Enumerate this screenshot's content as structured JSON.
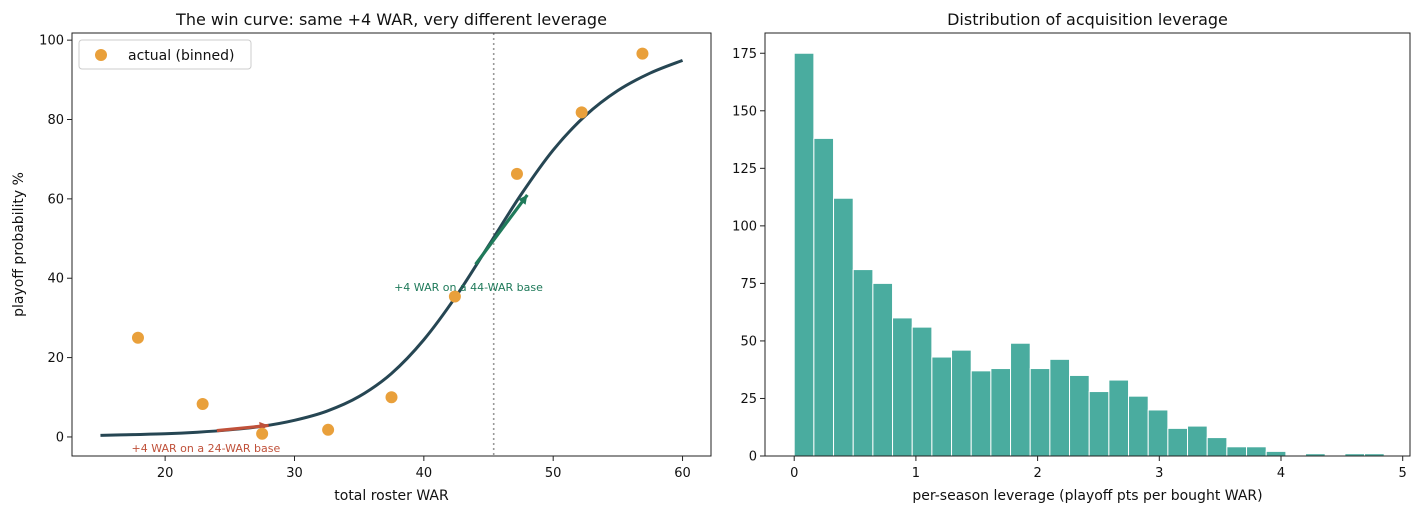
{
  "chart_data": [
    {
      "type": "line",
      "title": "The win curve: same +4 WAR, very different leverage",
      "xlabel": "total roster WAR",
      "ylabel": "playoff probability %",
      "xlim": [
        12.8,
        62.2
      ],
      "ylim": [
        -4.8,
        101.8
      ],
      "xticks": [
        20,
        30,
        40,
        50,
        60
      ],
      "yticks": [
        0,
        20,
        40,
        60,
        80,
        100
      ],
      "grid": false,
      "legend_position": "top-left",
      "curve": {
        "name": "",
        "color": "#264653",
        "x": [
          15,
          17.5,
          20,
          22.5,
          25,
          27.5,
          30,
          32.5,
          35,
          37.5,
          40,
          42.5,
          45,
          47.5,
          50,
          52.5,
          55,
          57.5,
          60
        ],
        "y": [
          0.4,
          0.6,
          0.8,
          1.2,
          1.8,
          2.7,
          4.2,
          6.5,
          10.2,
          16.0,
          24.5,
          35.5,
          48.2,
          61.0,
          72.3,
          81.0,
          87.3,
          91.7,
          94.9
        ]
      },
      "series": [
        {
          "name": "actual (binned)",
          "type": "scatter",
          "color": "#E9A03B",
          "x": [
            17.9,
            22.9,
            27.5,
            32.6,
            37.5,
            42.4,
            47.2,
            52.2,
            56.9
          ],
          "y": [
            25.0,
            8.3,
            0.8,
            1.8,
            10.0,
            35.4,
            66.3,
            81.8,
            96.6
          ]
        }
      ],
      "reference_line": {
        "x": 45.4,
        "color": "#999999"
      },
      "arrows": [
        {
          "x_from": 24,
          "x_to": 28,
          "y_from": 1.6,
          "y_to": 2.9,
          "color": "#C0513A"
        },
        {
          "x_from": 44,
          "x_to": 48,
          "y_from": 43.5,
          "y_to": 61.0,
          "color": "#1F7A5A"
        }
      ],
      "annotations": [
        {
          "text": "+4 WAR on a 24-WAR base",
          "x": 17.4,
          "y": -3.8,
          "color": "#C0513A"
        },
        {
          "text": "+4 WAR on a 44-WAR base",
          "x": 37.7,
          "y": 36.8,
          "color": "#1F7A5A"
        }
      ]
    },
    {
      "type": "bar",
      "title": "Distribution of acquisition leverage",
      "xlabel": "per-season leverage (playoff pts per bought WAR)",
      "ylabel": "",
      "xlim": [
        -0.24,
        5.06
      ],
      "ylim": [
        0,
        183.8
      ],
      "xticks": [
        0,
        1,
        2,
        3,
        4,
        5
      ],
      "yticks": [
        0,
        25,
        50,
        75,
        100,
        125,
        150,
        175
      ],
      "grid": false,
      "color": "#4AAC9F",
      "bin_width": 0.1616,
      "bin_start": 0.0,
      "values": [
        175,
        138,
        112,
        81,
        75,
        60,
        56,
        43,
        46,
        37,
        38,
        49,
        38,
        42,
        35,
        28,
        33,
        26,
        20,
        12,
        13,
        8,
        4,
        4,
        2,
        0,
        1,
        0,
        1,
        1
      ]
    }
  ]
}
